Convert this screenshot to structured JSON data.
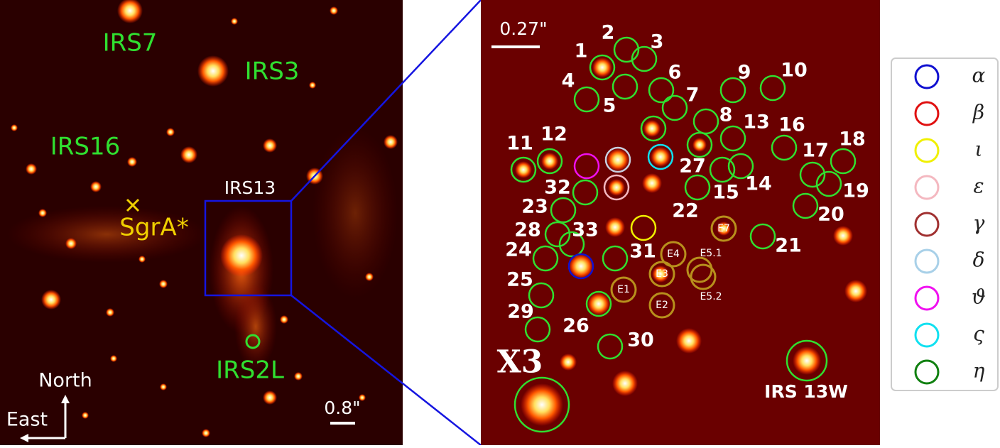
{
  "left_panel": {
    "labels": {
      "irs7": "IRS7",
      "irs3": "IRS3",
      "irs16": "IRS16",
      "sgra": "SgrA*",
      "irs13": "IRS13",
      "irs2l": "IRS2L"
    },
    "compass": {
      "north": "North",
      "east": "East"
    },
    "scale": "0.8\""
  },
  "right_panel": {
    "scale": "0.27\"",
    "source_numbers": [
      "1",
      "2",
      "3",
      "4",
      "5",
      "6",
      "7",
      "8",
      "9",
      "10",
      "11",
      "12",
      "13",
      "14",
      "15",
      "16",
      "17",
      "18",
      "19",
      "20",
      "21",
      "22",
      "23",
      "24",
      "25",
      "26",
      "27",
      "28",
      "29",
      "30",
      "31",
      "32",
      "33"
    ],
    "e_labels": [
      "E1",
      "E2",
      "E3",
      "E4",
      "E5.1",
      "E5.2",
      "E7"
    ],
    "x3": "X3",
    "irs13w": "IRS 13W"
  },
  "legend": [
    {
      "label": "α",
      "color": "#1010d0"
    },
    {
      "label": "β",
      "color": "#e01010"
    },
    {
      "label": "ι",
      "color": "#f0f000"
    },
    {
      "label": "ε",
      "color": "#f4b8c0"
    },
    {
      "label": "γ",
      "color": "#a03030"
    },
    {
      "label": "δ",
      "color": "#a8d0e8"
    },
    {
      "label": "ϑ",
      "color": "#f010f0"
    },
    {
      "label": "ς",
      "color": "#10e0f0"
    },
    {
      "label": "η",
      "color": "#108010"
    }
  ]
}
